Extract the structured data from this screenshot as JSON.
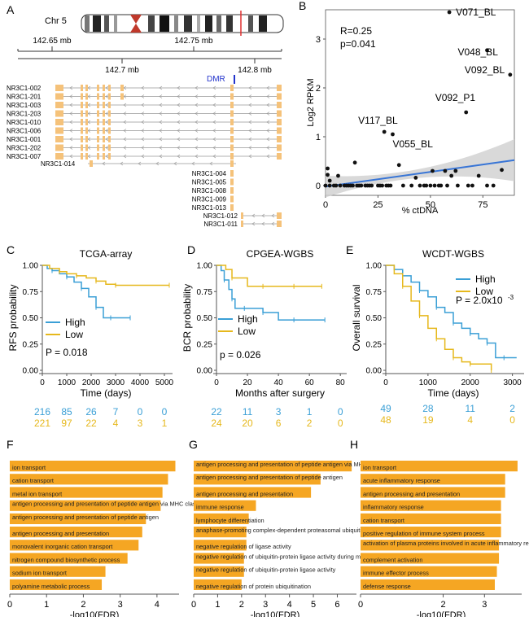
{
  "panels": {
    "A": {
      "letter": "A",
      "chr_label": "Chr 5",
      "scale_top": [
        "142.65 mb",
        "142.75 mb"
      ],
      "scale_bottom": [
        "142.7 mb",
        "142.8 mb"
      ],
      "dmr_label": "DMR",
      "transcripts_left": [
        "NR3C1-002",
        "NR3C1-201",
        "NR3C1-003",
        "NR3C1-203",
        "NR3C1-010",
        "NR3C1-006",
        "NR3C1-001",
        "NR3C1-202",
        "NR3C1-007"
      ],
      "transcript_014": "NR3C1-014",
      "transcripts_right": [
        "NR3C1-004",
        "NR3C1-005",
        "NR3C1-008",
        "NR3C1-009",
        "NR3C1-013"
      ],
      "transcripts_short": [
        "NR3C1-012",
        "NR3C1-011"
      ]
    },
    "B": {
      "letter": "B"
    },
    "C": {
      "letter": "C"
    },
    "D": {
      "letter": "D"
    },
    "E": {
      "letter": "E"
    },
    "F": {
      "letter": "F"
    },
    "G": {
      "letter": "G"
    },
    "H": {
      "letter": "H"
    }
  },
  "colors": {
    "high": "#3a9fd6",
    "low": "#e6b81c",
    "bar": "#f5a623",
    "exon": "#f5c27a",
    "fit": "#3875d6",
    "ci": "#cfcfcf",
    "dmr": "#2233cc"
  },
  "chart_data": [
    {
      "panel": "B",
      "type": "scatter",
      "xlabel": "% ctDNA",
      "ylabel": "Log2 RPKM",
      "xlim": [
        0,
        90
      ],
      "ylim": [
        -0.2,
        3.6
      ],
      "xticks": [
        "0",
        "25",
        "50",
        "75"
      ],
      "yticks": [
        "0",
        "1",
        "2",
        "3"
      ],
      "annotation": [
        "R=0.25",
        "p=0.041"
      ],
      "fit_line": {
        "x": [
          0,
          90
        ],
        "y": [
          -0.02,
          0.52
        ]
      },
      "labels": [
        {
          "text": "V071_BL",
          "x": 59,
          "y": 3.55
        },
        {
          "text": "V048_BL",
          "x": 77,
          "y": 2.77
        },
        {
          "text": "V092_BL",
          "x": 88,
          "y": 2.27
        },
        {
          "text": "V092_P1",
          "x": 67,
          "y": 1.5
        },
        {
          "text": "V117_BL",
          "x": 28,
          "y": 1.1
        },
        {
          "text": "V055_BL",
          "x": 32,
          "y": 1.05
        }
      ],
      "points": [
        {
          "x": 59,
          "y": 3.55
        },
        {
          "x": 77,
          "y": 2.77
        },
        {
          "x": 88,
          "y": 2.27
        },
        {
          "x": 67,
          "y": 1.5
        },
        {
          "x": 28,
          "y": 1.1
        },
        {
          "x": 32,
          "y": 1.05
        },
        {
          "x": 14,
          "y": 0.47
        },
        {
          "x": 1,
          "y": 0.35
        },
        {
          "x": 1,
          "y": 0.22
        },
        {
          "x": 2,
          "y": 0.1
        },
        {
          "x": 6,
          "y": 0.2
        },
        {
          "x": 43,
          "y": 0.16
        },
        {
          "x": 51,
          "y": 0.3
        },
        {
          "x": 57,
          "y": 0.3
        },
        {
          "x": 60,
          "y": 0.2
        },
        {
          "x": 62,
          "y": 0.3
        },
        {
          "x": 73,
          "y": 0.2
        },
        {
          "x": 84,
          "y": 0.32
        },
        {
          "x": 35,
          "y": 0.42
        },
        {
          "x": 0,
          "y": 0
        },
        {
          "x": 2,
          "y": 0
        },
        {
          "x": 4,
          "y": 0
        },
        {
          "x": 5,
          "y": 0
        },
        {
          "x": 7,
          "y": 0
        },
        {
          "x": 9,
          "y": 0
        },
        {
          "x": 10,
          "y": 0
        },
        {
          "x": 11,
          "y": 0
        },
        {
          "x": 12,
          "y": 0
        },
        {
          "x": 13,
          "y": 0
        },
        {
          "x": 15,
          "y": 0
        },
        {
          "x": 16,
          "y": 0
        },
        {
          "x": 17,
          "y": 0
        },
        {
          "x": 19,
          "y": 0
        },
        {
          "x": 20,
          "y": 0
        },
        {
          "x": 21,
          "y": 0
        },
        {
          "x": 22,
          "y": 0
        },
        {
          "x": 25,
          "y": 0
        },
        {
          "x": 26,
          "y": 0
        },
        {
          "x": 27,
          "y": 0
        },
        {
          "x": 29,
          "y": 0
        },
        {
          "x": 30,
          "y": 0
        },
        {
          "x": 31,
          "y": 0
        },
        {
          "x": 37,
          "y": 0
        },
        {
          "x": 41,
          "y": 0
        },
        {
          "x": 45,
          "y": 0
        },
        {
          "x": 47,
          "y": 0
        },
        {
          "x": 48,
          "y": 0
        },
        {
          "x": 50,
          "y": 0
        },
        {
          "x": 52,
          "y": 0
        },
        {
          "x": 54,
          "y": 0
        },
        {
          "x": 55,
          "y": 0
        },
        {
          "x": 58,
          "y": 0
        },
        {
          "x": 63,
          "y": 0
        },
        {
          "x": 68,
          "y": 0
        },
        {
          "x": 70,
          "y": 0
        },
        {
          "x": 77,
          "y": 0
        },
        {
          "x": 80,
          "y": 0
        }
      ]
    },
    {
      "panel": "C",
      "type": "line",
      "title": "TCGA-array",
      "xlabel": "Time (days)",
      "ylabel": "RFS probability",
      "xlim": [
        0,
        5200
      ],
      "ylim": [
        0,
        1
      ],
      "xticks": [
        "0",
        "1000",
        "2000",
        "3000",
        "4000",
        "5000"
      ],
      "yticks": [
        "0.00",
        "0.25",
        "0.50",
        "0.75",
        "1.00"
      ],
      "legend": [
        "High",
        "Low"
      ],
      "pvalue": "P = 0.018",
      "series": [
        {
          "name": "High",
          "x": [
            0,
            200,
            400,
            700,
            1000,
            1300,
            1600,
            1900,
            2200,
            2500,
            2800,
            3100,
            3600
          ],
          "y": [
            1,
            0.97,
            0.95,
            0.92,
            0.89,
            0.84,
            0.78,
            0.7,
            0.6,
            0.5,
            0.5,
            0.5,
            0.5
          ]
        },
        {
          "name": "Low",
          "x": [
            0,
            300,
            700,
            1000,
            1400,
            1800,
            2200,
            2600,
            3000,
            4000,
            5200
          ],
          "y": [
            1,
            0.97,
            0.94,
            0.92,
            0.9,
            0.88,
            0.85,
            0.82,
            0.81,
            0.81,
            0.81
          ]
        }
      ],
      "risk_table": {
        "High": [
          "216",
          "85",
          "26",
          "7",
          "0",
          "0"
        ],
        "Low": [
          "221",
          "97",
          "22",
          "4",
          "3",
          "1"
        ]
      }
    },
    {
      "panel": "D",
      "type": "line",
      "title": "CPGEA-WGBS",
      "xlabel": "Months after surgery",
      "ylabel": "BCR probability",
      "xlim": [
        0,
        82
      ],
      "ylim": [
        0,
        1
      ],
      "xticks": [
        "0",
        "20",
        "40",
        "60",
        "80"
      ],
      "yticks": [
        "0.00",
        "0.25",
        "0.50",
        "0.75",
        "1.00"
      ],
      "legend": [
        "High",
        "Low"
      ],
      "pvalue": "p = 0.026",
      "series": [
        {
          "name": "High",
          "x": [
            0,
            3,
            5,
            8,
            10,
            12,
            18,
            22,
            30,
            40,
            50,
            60,
            70
          ],
          "y": [
            1,
            0.95,
            0.86,
            0.77,
            0.68,
            0.59,
            0.59,
            0.59,
            0.55,
            0.48,
            0.48,
            0.48,
            0.48
          ]
        },
        {
          "name": "Low",
          "x": [
            0,
            6,
            10,
            20,
            30,
            40,
            50,
            60,
            68
          ],
          "y": [
            1,
            0.96,
            0.88,
            0.8,
            0.8,
            0.8,
            0.8,
            0.8,
            0.8
          ]
        }
      ],
      "risk_table": {
        "High": [
          "22",
          "11",
          "3",
          "1",
          "0"
        ],
        "Low": [
          "24",
          "20",
          "6",
          "2",
          "0"
        ]
      }
    },
    {
      "panel": "E",
      "type": "line",
      "title": "WCDT-WGBS",
      "xlabel": "Time (days)",
      "ylabel": "Overall survival",
      "xlim": [
        0,
        3200
      ],
      "ylim": [
        0,
        1
      ],
      "xticks": [
        "0",
        "1000",
        "2000",
        "3000"
      ],
      "yticks": [
        "0.00",
        "0.25",
        "0.50",
        "0.75",
        "1.00"
      ],
      "legend": [
        "High",
        "Low"
      ],
      "pvalue": "P = 2.0x10",
      "pvalue_exp": "-3",
      "series": [
        {
          "name": "High",
          "x": [
            0,
            200,
            400,
            600,
            800,
            1000,
            1200,
            1400,
            1600,
            1800,
            2000,
            2200,
            2400,
            2600,
            2800,
            3100
          ],
          "y": [
            1,
            0.96,
            0.9,
            0.84,
            0.76,
            0.7,
            0.6,
            0.55,
            0.45,
            0.4,
            0.35,
            0.3,
            0.26,
            0.12,
            0.12,
            0.12
          ]
        },
        {
          "name": "Low",
          "x": [
            0,
            200,
            400,
            600,
            800,
            1000,
            1200,
            1400,
            1600,
            1800,
            2000,
            2200,
            2500
          ],
          "y": [
            1,
            0.92,
            0.8,
            0.66,
            0.52,
            0.4,
            0.3,
            0.2,
            0.12,
            0.08,
            0.06,
            0.06,
            0.0
          ]
        }
      ],
      "risk_table": {
        "High": [
          "49",
          "28",
          "11",
          "2"
        ],
        "Low": [
          "48",
          "19",
          "4",
          "0"
        ]
      }
    },
    {
      "panel": "F",
      "type": "bar",
      "xlabel": "-log10(FDR)",
      "xlim": [
        0,
        4.6
      ],
      "xticks": [
        "0",
        "1",
        "2",
        "3",
        "4"
      ],
      "categories": [
        "ion transport",
        "cation transport",
        "metal ion transport",
        "antigen processing and presentation of peptide antigen via MHC class I",
        "antigen processing and presentation of peptide antigen",
        "antigen processing and presentation",
        "monovalent inorganic cation transport",
        "nitrogen compound biosynthetic process",
        "sodium ion transport",
        "polyamine metabolic process"
      ],
      "values": [
        4.5,
        4.3,
        4.15,
        4.1,
        3.7,
        3.6,
        3.5,
        3.2,
        2.6,
        2.5
      ]
    },
    {
      "panel": "G",
      "type": "bar",
      "xlabel": "-log10(FDR)",
      "xlim": [
        0,
        6.8
      ],
      "xticks": [
        "0",
        "1",
        "2",
        "3",
        "4",
        "5",
        "6"
      ],
      "categories": [
        "antigen processing and presentation of peptide antigen via MHC class I",
        "antigen processing and presentation of peptide antigen",
        "antigen processing and presentation",
        "immune response",
        "lymphocyte differentiation",
        "anaphase-promoting complex-dependent proteasomal ubiquitin-dependent prote",
        "negative regulation of ligase activity",
        "negative regulation of ubiquitin-protein ligase activity during mitotic cell cycle",
        "negative regulation of ubiquitin-protein ligase activity",
        "negative regulation of protein ubiquitination"
      ],
      "values": [
        6.6,
        5.3,
        4.9,
        2.6,
        2.3,
        2.2,
        2.2,
        2.1,
        2.1,
        2.0
      ]
    },
    {
      "panel": "H",
      "type": "bar",
      "xlabel": "-log10(FDR)",
      "xlim": [
        0,
        3.9
      ],
      "xticks": [
        "0",
        "2",
        "3"
      ],
      "categories": [
        "ion transport",
        "acute inflammatory response",
        "antigen processing and presentation",
        "inflammatory response",
        "cation transport",
        "positive regulation of immune system process",
        "activation of plasma proteins involved in acute inflammatory response",
        "complement activation",
        "immune effector process",
        "defense response"
      ],
      "values": [
        3.8,
        3.5,
        3.5,
        3.4,
        3.4,
        3.4,
        3.35,
        3.35,
        3.3,
        3.25
      ]
    }
  ]
}
